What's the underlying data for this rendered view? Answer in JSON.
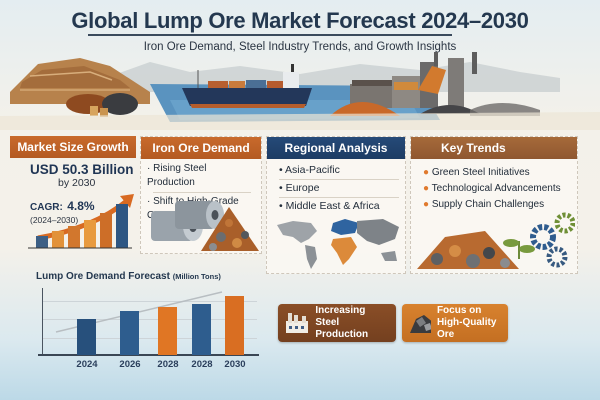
{
  "header": {
    "title": "Global Lump Ore Market Forecast 2024–2030",
    "subtitle": "Iron Ore Demand, Steel Industry Trends, and Growth Insights"
  },
  "scene": {
    "elements": [
      "open-pit-mine",
      "ore-piles",
      "cargo-ship",
      "steel-plant",
      "smokestacks"
    ]
  },
  "panels": {
    "market_size": {
      "title": "Market Size Growth",
      "value": "USD 50.3 Billion",
      "value_sub": "by 2030",
      "cagr_label": "CAGR:",
      "cagr_value": "4.8%",
      "cagr_period": "(2024–2030)",
      "mini_bars": [
        {
          "height": 12,
          "color": "#3d5f85"
        },
        {
          "height": 17,
          "color": "#e2923a"
        },
        {
          "height": 22,
          "color": "#d2772d"
        },
        {
          "height": 28,
          "color": "#e89a3e"
        },
        {
          "height": 35,
          "color": "#cd6e28"
        },
        {
          "height": 44,
          "color": "#2e5683"
        }
      ]
    },
    "iron_ore_demand": {
      "title": "Iron Ore Demand",
      "items": [
        "Rising Steel Production",
        "Shift to High-Grade Ore"
      ]
    },
    "regional_analysis": {
      "title": "Regional Analysis",
      "items": [
        "Asia-Pacific",
        "Europe",
        "Middle East & Africa"
      ]
    },
    "key_trends": {
      "title": "Key Trends",
      "items": [
        "Green Steel Initiatives",
        "Technological Advancements",
        "Supply Chain Challenges"
      ],
      "bullet_color": "#e07a2e"
    }
  },
  "chart_data": {
    "type": "bar",
    "title": "Lump Ore Demand Forecast",
    "title_unit": "(Million Tons)",
    "categories": [
      "2024",
      "2026",
      "2028",
      "2028",
      "2030"
    ],
    "values": [
      55,
      66,
      72,
      78,
      90
    ],
    "colors": [
      "#27507c",
      "#2e5d8e",
      "#e07624",
      "#2e5d8e",
      "#d96e22"
    ],
    "xlabel": "",
    "ylabel": "",
    "ylim": [
      0,
      100
    ],
    "grid": true,
    "trend_line": true,
    "legend": null
  },
  "highlights": [
    {
      "label_line1": "Increasing Steel",
      "label_line2": "Production",
      "icon": "factory-icon",
      "color": "#7f4623"
    },
    {
      "label_line1": "Focus on",
      "label_line2": "High-Quality Ore",
      "icon": "ore-pile-icon",
      "color": "#d0782a"
    }
  ],
  "colors": {
    "navy": "#24384f",
    "orange": "#c2642a",
    "blue_header": "#214570",
    "brown_header": "#9a6035"
  }
}
